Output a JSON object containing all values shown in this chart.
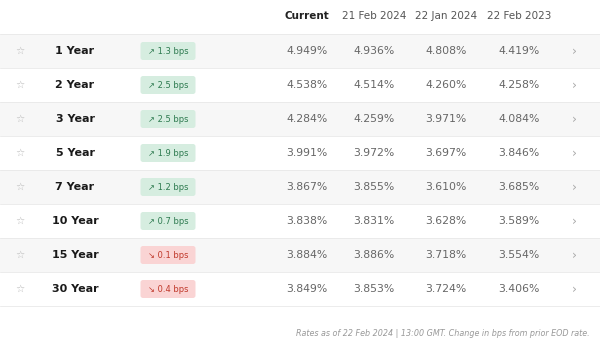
{
  "headers": [
    "Current",
    "21 Feb 2024",
    "22 Jan 2024",
    "22 Feb 2023"
  ],
  "rows": [
    {
      "label": "1 Year",
      "bps": "↗ 1.3 bps",
      "bps_up": true,
      "current": "4.949%",
      "d1": "4.936%",
      "d2": "4.808%",
      "d3": "4.419%"
    },
    {
      "label": "2 Year",
      "bps": "↗ 2.5 bps",
      "bps_up": true,
      "current": "4.538%",
      "d1": "4.514%",
      "d2": "4.260%",
      "d3": "4.258%"
    },
    {
      "label": "3 Year",
      "bps": "↗ 2.5 bps",
      "bps_up": true,
      "current": "4.284%",
      "d1": "4.259%",
      "d2": "3.971%",
      "d3": "4.084%"
    },
    {
      "label": "5 Year",
      "bps": "↗ 1.9 bps",
      "bps_up": true,
      "current": "3.991%",
      "d1": "3.972%",
      "d2": "3.697%",
      "d3": "3.846%"
    },
    {
      "label": "7 Year",
      "bps": "↗ 1.2 bps",
      "bps_up": true,
      "current": "3.867%",
      "d1": "3.855%",
      "d2": "3.610%",
      "d3": "3.685%"
    },
    {
      "label": "10 Year",
      "bps": "↗ 0.7 bps",
      "bps_up": true,
      "current": "3.838%",
      "d1": "3.831%",
      "d2": "3.628%",
      "d3": "3.589%"
    },
    {
      "label": "15 Year",
      "bps": "↘ 0.1 bps",
      "bps_up": false,
      "current": "3.884%",
      "d1": "3.886%",
      "d2": "3.718%",
      "d3": "3.554%"
    },
    {
      "label": "30 Year",
      "bps": "↘ 0.4 bps",
      "bps_up": false,
      "current": "3.849%",
      "d1": "3.853%",
      "d2": "3.724%",
      "d3": "3.406%"
    }
  ],
  "footer": "Rates as of 22 Feb 2024 | 13:00 GMT. Change in bps from prior EOD rate.",
  "bg_color": "#ffffff",
  "row_odd_color": "#f7f7f7",
  "row_even_color": "#ffffff",
  "header_bold_color": "#222222",
  "header_normal_color": "#555555",
  "label_color": "#1a1a1a",
  "value_color": "#666666",
  "bps_up_bg": "#d6ede0",
  "bps_up_text": "#2d7a4f",
  "bps_down_bg": "#fad4d4",
  "bps_down_text": "#c0392b",
  "footer_color": "#999999",
  "star_color": "#bbbbbb",
  "chevron_color": "#aaaaaa",
  "divider_color": "#e5e5e5"
}
